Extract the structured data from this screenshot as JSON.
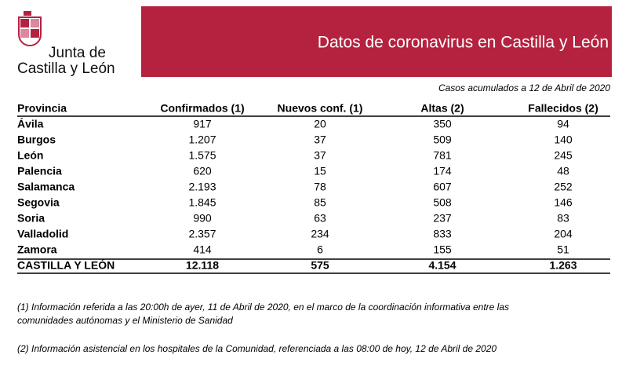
{
  "header": {
    "logo_line1": "Junta de",
    "logo_line2": "Castilla y León",
    "title": "Datos de coronavirus en Castilla y León",
    "subtitle": "Casos acumulados a 12 de Abril de 2020"
  },
  "table": {
    "columns": [
      "Provincia",
      "Confirmados (1)",
      "Nuevos conf. (1)",
      "Altas (2)",
      "Fallecidos (2)"
    ],
    "rows": [
      [
        "Ávila",
        "917",
        "20",
        "350",
        "94"
      ],
      [
        "Burgos",
        "1.207",
        "37",
        "509",
        "140"
      ],
      [
        "León",
        "1.575",
        "37",
        "781",
        "245"
      ],
      [
        "Palencia",
        "620",
        "15",
        "174",
        "48"
      ],
      [
        "Salamanca",
        "2.193",
        "78",
        "607",
        "252"
      ],
      [
        "Segovia",
        "1.845",
        "85",
        "508",
        "146"
      ],
      [
        "Soria",
        "990",
        "63",
        "237",
        "83"
      ],
      [
        "Valladolid",
        "2.357",
        "234",
        "833",
        "204"
      ],
      [
        "Zamora",
        "414",
        "6",
        "155",
        "51"
      ]
    ],
    "total": [
      "CASTILLA Y LEÓN",
      "12.118",
      "575",
      "4.154",
      "1.263"
    ]
  },
  "notes": [
    "(1) Información referida a las 20:00h de ayer, 11 de Abril de 2020, en el marco de la coordinación informativa entre las",
    "comunidades autónomas y el Ministerio de Sanidad",
    "(2) Información asistencial en los hospitales de la Comunidad, referenciada a las 08:00 de hoy, 12 de Abril de 2020"
  ]
}
